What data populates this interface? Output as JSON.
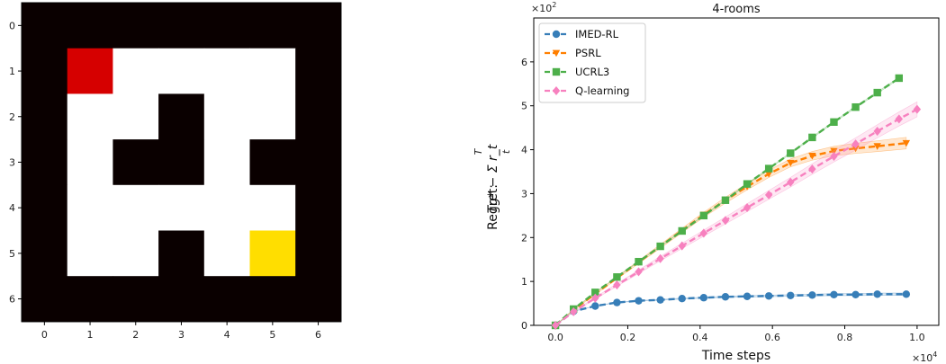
{
  "chart_data": [
    {
      "type": "heatmap",
      "rows": [
        [
          "wall",
          "wall",
          "wall",
          "wall",
          "wall",
          "wall",
          "wall"
        ],
        [
          "wall",
          "start",
          "free",
          "free",
          "free",
          "free",
          "wall"
        ],
        [
          "wall",
          "free",
          "free",
          "wall",
          "free",
          "free",
          "wall"
        ],
        [
          "wall",
          "free",
          "wall",
          "wall",
          "free",
          "wall",
          "wall"
        ],
        [
          "wall",
          "free",
          "free",
          "free",
          "free",
          "free",
          "wall"
        ],
        [
          "wall",
          "free",
          "free",
          "wall",
          "free",
          "goal",
          "wall"
        ],
        [
          "wall",
          "wall",
          "wall",
          "wall",
          "wall",
          "wall",
          "wall"
        ]
      ],
      "colors": {
        "wall": "#0a0000",
        "free": "#ffffff",
        "start": "#d60000",
        "goal": "#ffde00"
      },
      "x_ticks": [
        "0",
        "1",
        "2",
        "3",
        "4",
        "5",
        "6"
      ],
      "y_ticks": [
        "0",
        "1",
        "2",
        "3",
        "4",
        "5",
        "6"
      ]
    },
    {
      "type": "line",
      "title": "4-rooms",
      "xlabel": "Time steps",
      "ylabel_prefix": "Regret: ",
      "ylabel_math": "Tg* − Σ r_t",
      "ylabel_sum_upper": "T",
      "ylabel_sum_lower": "t",
      "x_multiplier": "×10",
      "x_multiplier_exp": "4",
      "y_multiplier": "×10",
      "y_multiplier_exp": "2",
      "xlim": [
        -600,
        10600
      ],
      "ylim": [
        0,
        700
      ],
      "x_ticks": [
        0,
        2000,
        4000,
        6000,
        8000,
        10000
      ],
      "x_tick_labels": [
        "0.0",
        "0.2",
        "0.4",
        "0.6",
        "0.8",
        "1.0"
      ],
      "y_ticks": [
        0,
        100,
        200,
        300,
        400,
        500,
        600
      ],
      "y_tick_labels": [
        "0",
        "1",
        "2",
        "3",
        "4",
        "5",
        "6"
      ],
      "legend_position": "top-left",
      "grid": false,
      "series": [
        {
          "name": "IMED-RL",
          "color": "#377eb8",
          "marker": "circle",
          "x": [
            0,
            500,
            1100,
            1700,
            2300,
            2900,
            3500,
            4100,
            4700,
            5300,
            5900,
            6500,
            7100,
            7700,
            8300,
            8900,
            9700
          ],
          "y": [
            0,
            32,
            44,
            52,
            56,
            58,
            61,
            63,
            65,
            66,
            67,
            68,
            69,
            70,
            70,
            71,
            71
          ],
          "band": 3
        },
        {
          "name": "PSRL",
          "color": "#ff7f00",
          "marker": "triangle-down",
          "x": [
            0,
            500,
            1100,
            1700,
            2300,
            2900,
            3500,
            4100,
            4700,
            5300,
            5900,
            6500,
            7100,
            7700,
            8300,
            8900,
            9700
          ],
          "y": [
            0,
            35,
            72,
            108,
            144,
            180,
            216,
            252,
            285,
            316,
            345,
            370,
            386,
            397,
            403,
            408,
            415
          ],
          "band": 14
        },
        {
          "name": "UCRL3",
          "color": "#4daf4a",
          "marker": "square",
          "x": [
            0,
            500,
            1100,
            1700,
            2300,
            2900,
            3500,
            4100,
            4700,
            5300,
            5900,
            6500,
            7100,
            7700,
            8300,
            8900,
            9500
          ],
          "y": [
            0,
            37,
            75,
            110,
            145,
            180,
            215,
            250,
            285,
            322,
            357,
            392,
            428,
            463,
            497,
            530,
            563
          ],
          "band": 2
        },
        {
          "name": "Q-learning",
          "color": "#f781bf",
          "marker": "diamond",
          "x": [
            0,
            500,
            1100,
            1700,
            2300,
            2900,
            3500,
            4100,
            4700,
            5300,
            5900,
            6500,
            7100,
            7700,
            8300,
            8900,
            9500,
            10000
          ],
          "y": [
            0,
            31,
            62,
            92,
            122,
            152,
            181,
            210,
            239,
            268,
            297,
            326,
            356,
            385,
            413,
            442,
            470,
            492
          ],
          "band": 18
        }
      ]
    }
  ]
}
